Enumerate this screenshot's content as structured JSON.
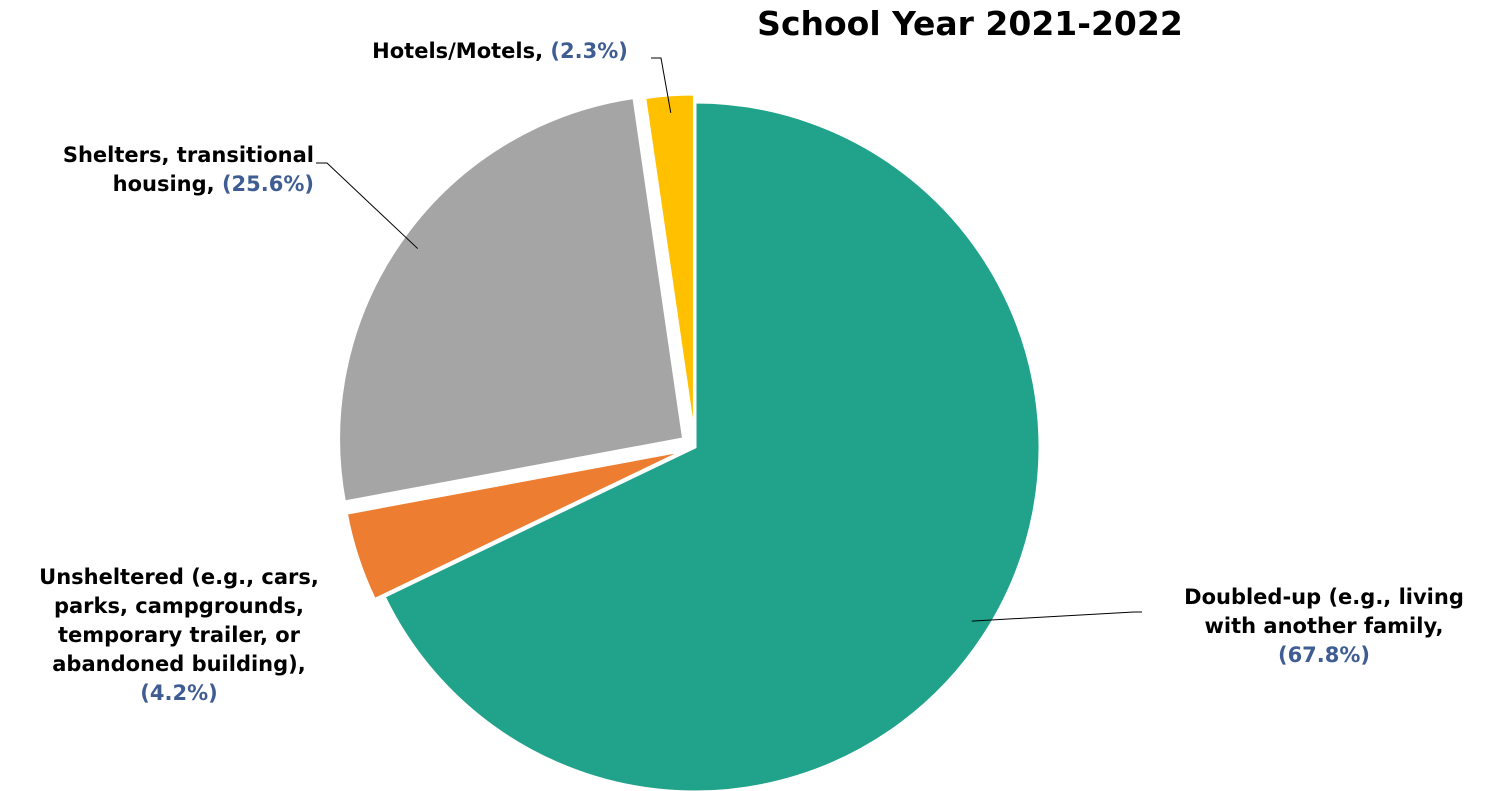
{
  "colors": {
    "doubled_up": "#21a28a",
    "unsheltered": "#ed7d31",
    "shelters": "#a5a5a5",
    "hotels": "#ffc000",
    "percent_label": "#3f5d93"
  },
  "chart_data": {
    "type": "pie",
    "title": "School Year 2021-2022",
    "start_angle": "12 o'clock, clockwise",
    "exploded": true,
    "slices": [
      {
        "key": "doubled_up",
        "label": "Doubled-up (e.g., living with another family,",
        "label_lines": [
          "Doubled-up (e.g., living",
          "with another family,"
        ],
        "percent_text": "(67.8%)",
        "value": 67.8,
        "color": "#21a28a"
      },
      {
        "key": "unsheltered",
        "label": "Unsheltered (e.g., cars, parks, campgrounds, temporary trailer, or abandoned building),",
        "label_lines": [
          "Unsheltered (e.g., cars,",
          "parks, campgrounds,",
          "temporary trailer, or",
          "abandoned building),"
        ],
        "percent_text": "(4.2%)",
        "value": 4.2,
        "color": "#ed7d31"
      },
      {
        "key": "shelters",
        "label": "Shelters, transitional housing,",
        "label_lines": [
          "Shelters, transitional",
          "housing,"
        ],
        "percent_text": "(25.6%)",
        "value": 25.6,
        "color": "#a5a5a5"
      },
      {
        "key": "hotels",
        "label": "Hotels/Motels,",
        "label_lines": [
          "Hotels/Motels,"
        ],
        "percent_text": "(2.3%)",
        "value": 2.3,
        "color": "#ffc000"
      }
    ]
  }
}
